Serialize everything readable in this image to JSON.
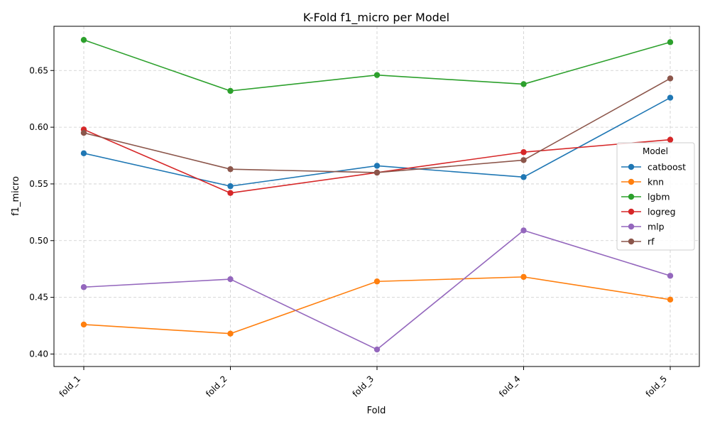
{
  "chart_data": {
    "type": "line",
    "title": "K-Fold f1_micro per Model",
    "xlabel": "Fold",
    "ylabel": "f1_micro",
    "categories": [
      "fold_1",
      "fold_2",
      "fold_3",
      "fold_4",
      "fold_5"
    ],
    "ylim": [
      0.389,
      0.689
    ],
    "yticks": [
      0.4,
      0.45,
      0.5,
      0.55,
      0.6,
      0.65
    ],
    "ytick_labels": [
      "0.40",
      "0.45",
      "0.50",
      "0.55",
      "0.60",
      "0.65"
    ],
    "grid": true,
    "legend": {
      "title": "Model",
      "placement": "center-right"
    },
    "series": [
      {
        "name": "catboost",
        "color": "#1f77b4",
        "values": [
          0.577,
          0.548,
          0.566,
          0.556,
          0.626
        ]
      },
      {
        "name": "knn",
        "color": "#ff7f0e",
        "values": [
          0.426,
          0.418,
          0.464,
          0.468,
          0.448
        ]
      },
      {
        "name": "lgbm",
        "color": "#2ca02c",
        "values": [
          0.677,
          0.632,
          0.646,
          0.638,
          0.675
        ]
      },
      {
        "name": "logreg",
        "color": "#d62728",
        "values": [
          0.598,
          0.542,
          0.56,
          0.578,
          0.589
        ]
      },
      {
        "name": "mlp",
        "color": "#9467bd",
        "values": [
          0.459,
          0.466,
          0.404,
          0.509,
          0.469
        ]
      },
      {
        "name": "rf",
        "color": "#8c564b",
        "values": [
          0.595,
          0.563,
          0.56,
          0.571,
          0.643
        ]
      }
    ]
  }
}
